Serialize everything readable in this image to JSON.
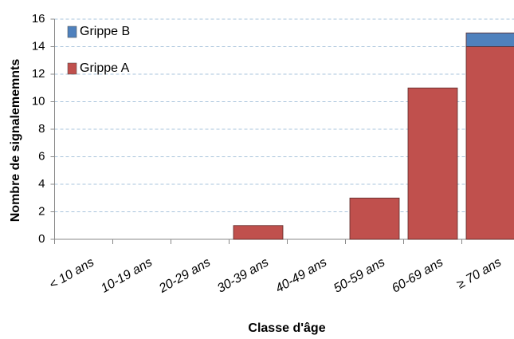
{
  "chart_data": {
    "type": "stacked_bar",
    "categories": [
      "< 10 ans",
      "10-19 ans",
      "20-29 ans",
      "30-39 ans",
      "40-49 ans",
      "50-59 ans",
      "60-69 ans",
      "≥ 70 ans"
    ],
    "series": [
      {
        "name": "Grippe A",
        "color": "#c0504d",
        "values": [
          0,
          0,
          0,
          1,
          0,
          3,
          11,
          14
        ]
      },
      {
        "name": "Grippe B",
        "color": "#4f81bd",
        "values": [
          0,
          0,
          0,
          0,
          0,
          0,
          0,
          1
        ]
      }
    ],
    "ylim": [
      0,
      16
    ],
    "yticks": [
      0,
      2,
      4,
      6,
      8,
      10,
      12,
      14,
      16
    ],
    "grid": true,
    "x_label": "Classe d'âge",
    "y_label": "Nombre de signalememnts",
    "legend": "top-left"
  }
}
